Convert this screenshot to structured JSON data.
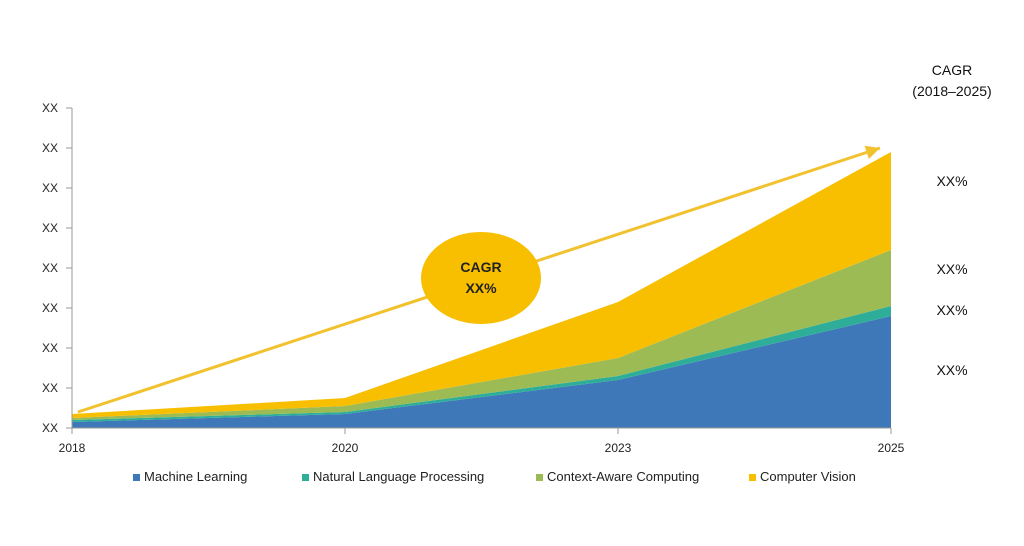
{
  "chart_data": {
    "type": "area",
    "stacked": true,
    "x": [
      "2018",
      "2020",
      "2023",
      "2025"
    ],
    "y_tick_labels": [
      "XX",
      "XX",
      "XX",
      "XX",
      "XX",
      "XX",
      "XX",
      "XX",
      "XX"
    ],
    "series": [
      {
        "name": "Machine Learning",
        "color": "#3E78B8",
        "values": [
          0.15,
          0.35,
          1.2,
          2.8
        ]
      },
      {
        "name": "Natural Language Processing",
        "color": "#2EAE99",
        "values": [
          0.05,
          0.05,
          0.1,
          0.25
        ]
      },
      {
        "name": "Context-Aware Computing",
        "color": "#9DBB55",
        "values": [
          0.05,
          0.15,
          0.45,
          1.4
        ]
      },
      {
        "name": "Computer Vision",
        "color": "#F8BF00",
        "values": [
          0.1,
          0.2,
          1.4,
          2.45
        ]
      }
    ],
    "ylim": [
      0,
      8
    ],
    "legend_position": "bottom",
    "grid": false,
    "cagr_header": [
      "CAGR",
      "(2018–2025)"
    ],
    "cagr_values": [
      "XX%",
      "XX%",
      "XX%",
      "XX%"
    ],
    "overall_cagr": {
      "label": "CAGR",
      "value": "XX%"
    },
    "arrow_color": "#F2C12E",
    "bubble_color": "#F8BF00"
  }
}
